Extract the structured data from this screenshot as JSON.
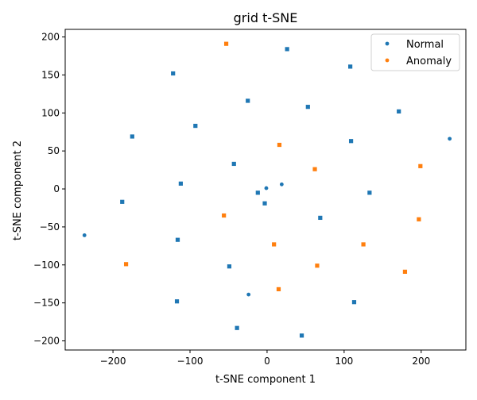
{
  "chart_data": {
    "type": "scatter",
    "title": "grid t-SNE",
    "xlabel": "t-SNE component 1",
    "ylabel": "t-SNE component 2",
    "xlim": [
      -262,
      258
    ],
    "ylim": [
      -212,
      210
    ],
    "xticks": [
      -200,
      -100,
      0,
      100,
      200
    ],
    "yticks": [
      -200,
      -150,
      -100,
      -50,
      0,
      50,
      100,
      150,
      200
    ],
    "grid": false,
    "legend_position": "top-right",
    "series": [
      {
        "name": "Normal",
        "color": "#1f77b4",
        "marker": "square",
        "points": [
          [
            26,
            184
          ],
          [
            108,
            161
          ],
          [
            -122,
            152
          ],
          [
            -25,
            116
          ],
          [
            53,
            108
          ],
          [
            171,
            102
          ],
          [
            -93,
            83
          ],
          [
            -175,
            69
          ],
          [
            109,
            63
          ],
          [
            -43,
            33
          ],
          [
            -112,
            7
          ],
          [
            -12,
            -5
          ],
          [
            -3,
            -19
          ],
          [
            -188,
            -17
          ],
          [
            133,
            -5
          ],
          [
            69,
            -38
          ],
          [
            -116,
            -67
          ],
          [
            -49,
            -102
          ],
          [
            -117,
            -148
          ],
          [
            113,
            -149
          ],
          [
            -39,
            -183
          ],
          [
            45,
            -193
          ]
        ]
      },
      {
        "name": "Normal",
        "color": "#1f77b4",
        "marker": "dot",
        "points": [
          [
            -237,
            -61
          ],
          [
            -1,
            1
          ],
          [
            19,
            6
          ],
          [
            237,
            66
          ],
          [
            -24,
            -139
          ]
        ]
      },
      {
        "name": "Anomaly",
        "color": "#ff7f0e",
        "marker": "square",
        "points": [
          [
            -53,
            191
          ],
          [
            16,
            58
          ],
          [
            62,
            26
          ],
          [
            199,
            30
          ],
          [
            -56,
            -35
          ],
          [
            197,
            -40
          ],
          [
            9,
            -73
          ],
          [
            125,
            -73
          ],
          [
            -183,
            -99
          ],
          [
            65,
            -101
          ],
          [
            179,
            -109
          ],
          [
            15,
            -132
          ]
        ]
      }
    ]
  }
}
